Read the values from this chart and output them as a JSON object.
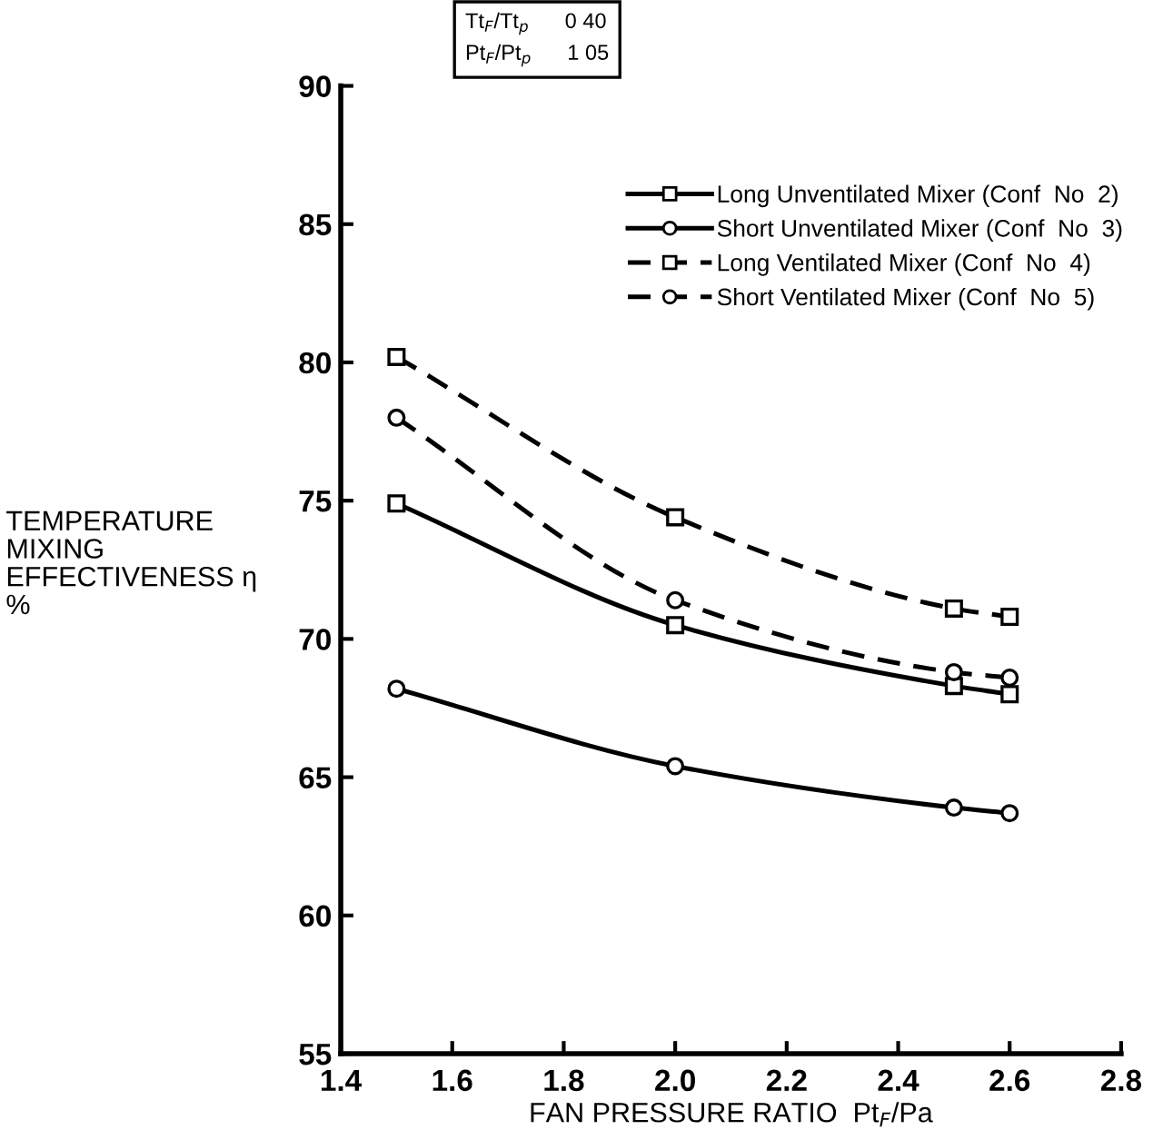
{
  "chart_data": {
    "type": "line",
    "xlabel": "FAN PRESSURE RATIO  Pt$_{F}$/Pa",
    "ylabel": "TEMPERATURE\nMIXING\nEFFECTIVENESS η\n%",
    "annotations": [
      "Tt$_{F}$/Tt$_{p}$      0 40",
      "Pt$_{F}$/Pt$_{p}$      1 05"
    ],
    "series": [
      {
        "name": "Long Unventilated Mixer (Conf  No  2)",
        "color": "#000000",
        "line_style": "solid",
        "marker": "square",
        "x": [
          1.5,
          2.0,
          2.5,
          2.6
        ],
        "values": [
          74.9,
          70.5,
          68.3,
          68.0
        ]
      },
      {
        "name": "Short Unventilated Mixer (Conf  No  3)",
        "color": "#000000",
        "line_style": "solid",
        "marker": "circle",
        "x": [
          1.5,
          2.0,
          2.5,
          2.6
        ],
        "values": [
          68.2,
          65.4,
          63.9,
          63.7
        ]
      },
      {
        "name": "Long Ventilated Mixer (Conf  No  4)",
        "color": "#000000",
        "line_style": "dashed",
        "marker": "square",
        "x": [
          1.5,
          2.0,
          2.5,
          2.6
        ],
        "values": [
          80.2,
          74.4,
          71.1,
          70.8
        ]
      },
      {
        "name": "Short Ventilated Mixer (Conf  No  5)",
        "color": "#000000",
        "line_style": "dashed",
        "marker": "circle",
        "x": [
          1.5,
          2.0,
          2.5,
          2.6
        ],
        "values": [
          78.0,
          71.4,
          68.8,
          68.6
        ]
      }
    ],
    "xlim": [
      1.4,
      2.8
    ],
    "xticks": [
      1.4,
      1.6,
      1.8,
      {
        "value": 2.0,
        "label": "2.0"
      },
      2.2,
      2.4,
      2.6,
      2.8
    ],
    "ylim": [
      55,
      90
    ],
    "yticks": [
      55,
      60,
      65,
      70,
      75,
      80,
      85,
      90
    ],
    "grid": false,
    "legend": "top right"
  }
}
